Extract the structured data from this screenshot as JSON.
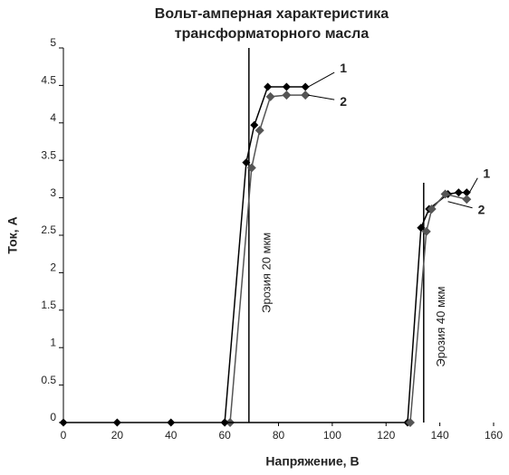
{
  "chart_data": {
    "type": "line",
    "title": [
      "Вольт-амперная   характеристика",
      "трансформаторного   масла"
    ],
    "xlabel": "Напряжение,   В",
    "ylabel": "Ток, А",
    "xlim": [
      0,
      160
    ],
    "ylim": [
      0,
      5
    ],
    "xticks": [
      0,
      20,
      40,
      60,
      80,
      100,
      120,
      140,
      160
    ],
    "yticks": [
      0,
      0.5,
      1,
      1.5,
      2,
      2.5,
      3,
      3.5,
      4,
      4.5,
      5
    ],
    "series": [
      {
        "color": "#000000",
        "x": [
          0,
          20,
          40,
          60,
          68,
          71,
          76,
          83,
          90
        ],
        "values": [
          0,
          0,
          0,
          0,
          3.47,
          3.97,
          4.48,
          4.48,
          4.48
        ]
      },
      {
        "color": "#555555",
        "x": [
          62,
          70,
          73,
          77,
          83,
          90
        ],
        "values": [
          0,
          3.4,
          3.9,
          4.35,
          4.37,
          4.37
        ]
      },
      {
        "color": "#000000",
        "x": [
          60,
          128,
          133,
          136,
          143,
          147,
          150
        ],
        "values": [
          0,
          0,
          2.6,
          2.85,
          3.05,
          3.07,
          3.07
        ]
      },
      {
        "color": "#555555",
        "x": [
          129,
          135,
          137,
          142,
          150
        ],
        "values": [
          0,
          2.55,
          2.85,
          3.05,
          2.98
        ]
      }
    ],
    "vlines": [
      {
        "x": 69,
        "top": 5,
        "label": "Эрозия 20 мкм"
      },
      {
        "x": 134,
        "top": 3.2,
        "label": "Эрозия 40 мкм"
      }
    ],
    "annotations": [
      {
        "text": "1",
        "x": 90,
        "y": 4.48
      },
      {
        "text": "2",
        "x": 90,
        "y": 4.37
      },
      {
        "text": "1",
        "x": 150,
        "y": 3.07
      },
      {
        "text": "2",
        "x": 142,
        "y": 2.95
      }
    ]
  }
}
